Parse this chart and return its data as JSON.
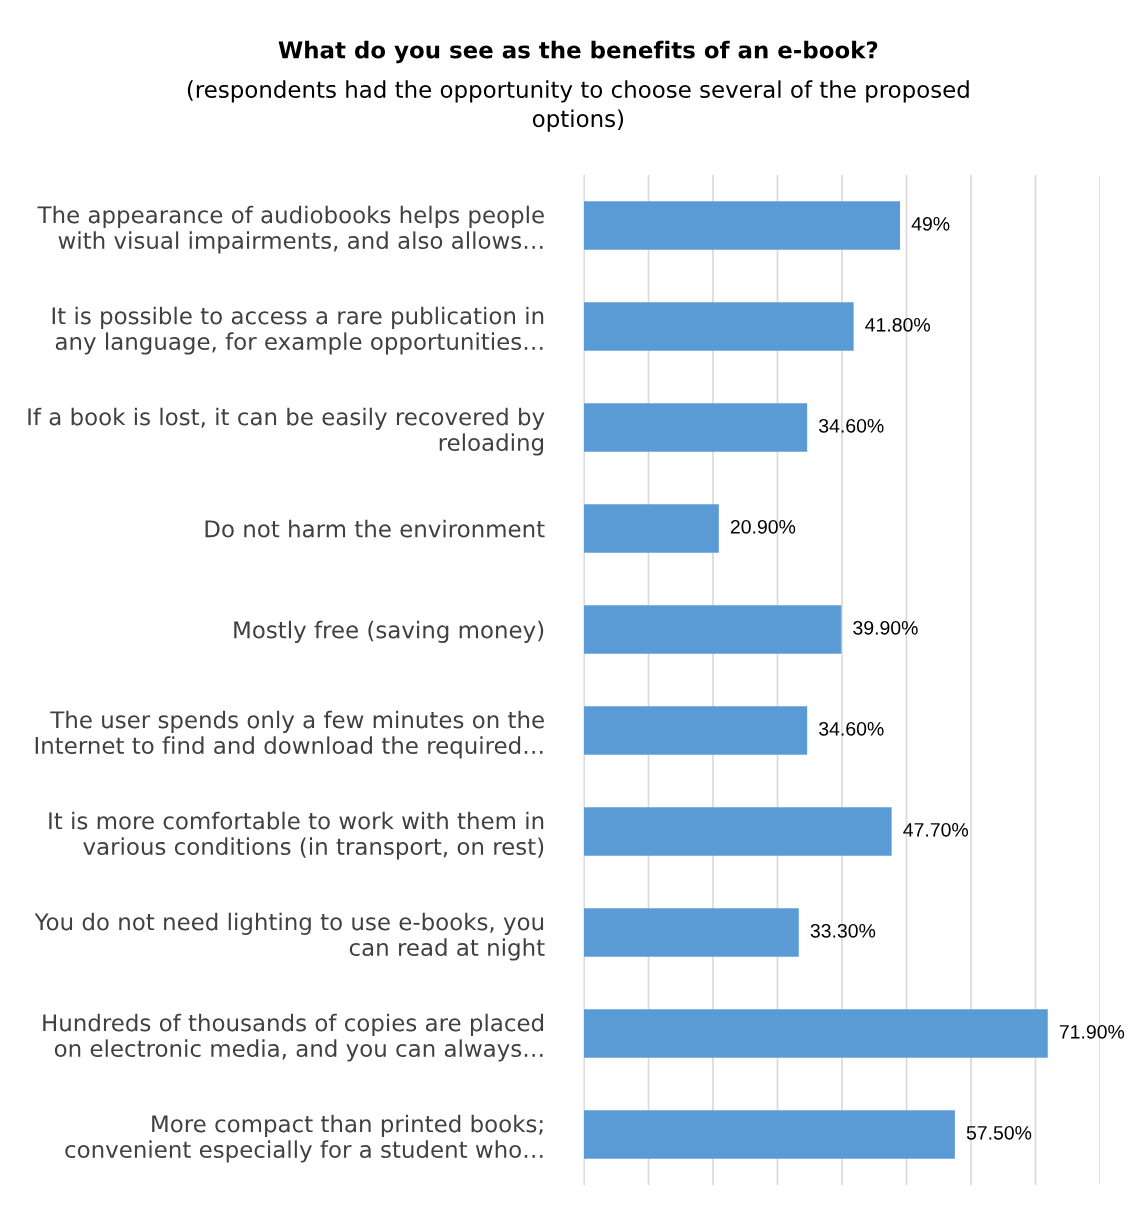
{
  "chart_data": {
    "type": "bar",
    "orientation": "horizontal",
    "title": "What do you see as the benefits of an e-book?",
    "subtitle": "(respondents had the opportunity to choose several of the proposed\noptions)",
    "categories": [
      "The appearance of audiobooks helps people\nwith visual impairments, and also allows…",
      "It is possible to access a rare publication in\nany language, for example opportunities…",
      "If a book is lost, it can be easily recovered by\nreloading",
      "Do not harm the environment",
      "Mostly free (saving money)",
      "The user spends only a few minutes on the\nInternet to find and download the required…",
      "It is more comfortable to work with them in\nvarious conditions (in transport, on rest)",
      "You do not need lighting to use e-books, you\ncan read at night",
      "Hundreds of thousands of copies are placed\non electronic media, and you can always…",
      "More compact than printed books;\nconvenient especially for a student who…"
    ],
    "values": [
      49,
      41.8,
      34.6,
      20.9,
      39.9,
      34.6,
      47.7,
      33.3,
      71.9,
      57.5
    ],
    "value_labels": [
      "49%",
      "41.80%",
      "34.60%",
      "20.90%",
      "39.90%",
      "34.60%",
      "47.70%",
      "33.30%",
      "71.90%",
      "57.50%"
    ],
    "color": "#5b9bd5",
    "xlim": [
      0,
      80
    ],
    "xticks": [
      {
        "value": 0,
        "label": null
      },
      {
        "value": 10,
        "label": null
      },
      {
        "value": 20,
        "label": null
      },
      {
        "value": 30,
        "label": null
      },
      {
        "value": 40,
        "label": null
      },
      {
        "value": 50,
        "label": null
      },
      {
        "value": 60,
        "label": null
      },
      {
        "value": 70,
        "label": null
      },
      {
        "value": 80,
        "label": null
      }
    ],
    "grid": "x",
    "tick_labels": "y",
    "legend": false
  }
}
